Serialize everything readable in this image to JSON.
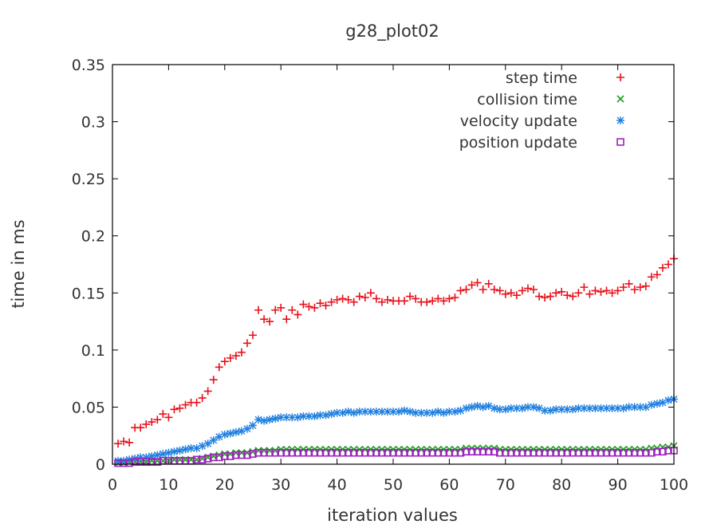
{
  "chart_data": {
    "type": "scatter",
    "title": "g28_plot02",
    "xlabel": "iteration values",
    "ylabel": "time in ms",
    "xlim": [
      0,
      100
    ],
    "ylim": [
      0,
      0.35
    ],
    "xticks": [
      "0",
      "10",
      "20",
      "30",
      "40",
      "50",
      "60",
      "70",
      "80",
      "90",
      "100"
    ],
    "yticks": [
      "0",
      "0.05",
      "0.1",
      "0.15",
      "0.2",
      "0.25",
      "0.3",
      "0.35"
    ],
    "grid": false,
    "legend_position": "top-right",
    "x": [
      1,
      2,
      3,
      4,
      5,
      6,
      7,
      8,
      9,
      10,
      11,
      12,
      13,
      14,
      15,
      16,
      17,
      18,
      19,
      20,
      21,
      22,
      23,
      24,
      25,
      26,
      27,
      28,
      29,
      30,
      31,
      32,
      33,
      34,
      35,
      36,
      37,
      38,
      39,
      40,
      41,
      42,
      43,
      44,
      45,
      46,
      47,
      48,
      49,
      50,
      51,
      52,
      53,
      54,
      55,
      56,
      57,
      58,
      59,
      60,
      61,
      62,
      63,
      64,
      65,
      66,
      67,
      68,
      69,
      70,
      71,
      72,
      73,
      74,
      75,
      76,
      77,
      78,
      79,
      80,
      81,
      82,
      83,
      84,
      85,
      86,
      87,
      88,
      89,
      90,
      91,
      92,
      93,
      94,
      95,
      96,
      97,
      98,
      99,
      100
    ],
    "series": [
      {
        "name": "step time",
        "color": "#e8101a",
        "marker": "plus",
        "values": [
          0.018,
          0.02,
          0.019,
          0.032,
          0.032,
          0.035,
          0.037,
          0.039,
          0.044,
          0.041,
          0.048,
          0.049,
          0.052,
          0.054,
          0.054,
          0.058,
          0.064,
          0.074,
          0.085,
          0.09,
          0.093,
          0.095,
          0.098,
          0.106,
          0.113,
          0.135,
          0.127,
          0.125,
          0.135,
          0.137,
          0.127,
          0.135,
          0.131,
          0.14,
          0.138,
          0.137,
          0.141,
          0.139,
          0.142,
          0.144,
          0.145,
          0.144,
          0.142,
          0.147,
          0.146,
          0.15,
          0.145,
          0.142,
          0.144,
          0.143,
          0.143,
          0.143,
          0.147,
          0.145,
          0.142,
          0.142,
          0.143,
          0.145,
          0.143,
          0.145,
          0.146,
          0.152,
          0.153,
          0.157,
          0.159,
          0.153,
          0.158,
          0.153,
          0.152,
          0.149,
          0.15,
          0.148,
          0.152,
          0.154,
          0.153,
          0.147,
          0.146,
          0.147,
          0.15,
          0.151,
          0.148,
          0.147,
          0.15,
          0.155,
          0.149,
          0.152,
          0.151,
          0.152,
          0.15,
          0.152,
          0.155,
          0.158,
          0.153,
          0.155,
          0.156,
          0.164,
          0.166,
          0.172,
          0.175,
          0.18
        ]
      },
      {
        "name": "collision time",
        "color": "#1aa01a",
        "marker": "cross",
        "values": [
          0.001,
          0.001,
          0.002,
          0.002,
          0.002,
          0.002,
          0.003,
          0.003,
          0.003,
          0.003,
          0.004,
          0.004,
          0.004,
          0.004,
          0.004,
          0.005,
          0.006,
          0.007,
          0.008,
          0.009,
          0.009,
          0.01,
          0.01,
          0.01,
          0.011,
          0.012,
          0.012,
          0.012,
          0.012,
          0.013,
          0.013,
          0.013,
          0.013,
          0.013,
          0.013,
          0.013,
          0.013,
          0.013,
          0.013,
          0.013,
          0.013,
          0.013,
          0.013,
          0.013,
          0.013,
          0.013,
          0.013,
          0.013,
          0.013,
          0.013,
          0.013,
          0.013,
          0.013,
          0.013,
          0.013,
          0.013,
          0.013,
          0.013,
          0.013,
          0.013,
          0.013,
          0.013,
          0.014,
          0.014,
          0.014,
          0.014,
          0.014,
          0.014,
          0.013,
          0.013,
          0.013,
          0.013,
          0.013,
          0.013,
          0.013,
          0.013,
          0.013,
          0.013,
          0.013,
          0.013,
          0.013,
          0.013,
          0.013,
          0.013,
          0.013,
          0.013,
          0.013,
          0.013,
          0.013,
          0.013,
          0.013,
          0.013,
          0.013,
          0.013,
          0.013,
          0.014,
          0.014,
          0.015,
          0.015,
          0.016
        ]
      },
      {
        "name": "velocity update",
        "color": "#2080e0",
        "marker": "star",
        "values": [
          0.003,
          0.003,
          0.004,
          0.005,
          0.006,
          0.006,
          0.007,
          0.008,
          0.009,
          0.01,
          0.011,
          0.012,
          0.013,
          0.014,
          0.014,
          0.016,
          0.018,
          0.021,
          0.024,
          0.026,
          0.027,
          0.028,
          0.029,
          0.031,
          0.034,
          0.039,
          0.038,
          0.039,
          0.04,
          0.041,
          0.041,
          0.041,
          0.041,
          0.042,
          0.042,
          0.042,
          0.043,
          0.043,
          0.044,
          0.045,
          0.045,
          0.046,
          0.045,
          0.046,
          0.046,
          0.046,
          0.046,
          0.046,
          0.046,
          0.046,
          0.046,
          0.047,
          0.046,
          0.045,
          0.045,
          0.045,
          0.045,
          0.046,
          0.045,
          0.046,
          0.046,
          0.047,
          0.049,
          0.05,
          0.051,
          0.05,
          0.051,
          0.049,
          0.048,
          0.048,
          0.049,
          0.049,
          0.049,
          0.05,
          0.05,
          0.049,
          0.047,
          0.047,
          0.048,
          0.048,
          0.048,
          0.048,
          0.049,
          0.049,
          0.049,
          0.049,
          0.049,
          0.049,
          0.049,
          0.049,
          0.049,
          0.05,
          0.05,
          0.05,
          0.05,
          0.052,
          0.053,
          0.054,
          0.056,
          0.057
        ]
      },
      {
        "name": "position update",
        "color": "#a020c0",
        "marker": "square",
        "values": [
          0.001,
          0.001,
          0.001,
          0.002,
          0.002,
          0.002,
          0.002,
          0.002,
          0.003,
          0.003,
          0.003,
          0.003,
          0.003,
          0.003,
          0.004,
          0.004,
          0.005,
          0.006,
          0.006,
          0.007,
          0.007,
          0.008,
          0.008,
          0.008,
          0.009,
          0.01,
          0.01,
          0.01,
          0.01,
          0.01,
          0.01,
          0.01,
          0.01,
          0.01,
          0.01,
          0.01,
          0.01,
          0.01,
          0.01,
          0.01,
          0.01,
          0.01,
          0.01,
          0.01,
          0.01,
          0.01,
          0.01,
          0.01,
          0.01,
          0.01,
          0.01,
          0.01,
          0.01,
          0.01,
          0.01,
          0.01,
          0.01,
          0.01,
          0.01,
          0.01,
          0.01,
          0.01,
          0.011,
          0.011,
          0.011,
          0.011,
          0.011,
          0.011,
          0.01,
          0.01,
          0.01,
          0.01,
          0.01,
          0.01,
          0.01,
          0.01,
          0.01,
          0.01,
          0.01,
          0.01,
          0.01,
          0.01,
          0.01,
          0.01,
          0.01,
          0.01,
          0.01,
          0.01,
          0.01,
          0.01,
          0.01,
          0.01,
          0.01,
          0.01,
          0.01,
          0.01,
          0.011,
          0.011,
          0.012,
          0.012
        ]
      }
    ]
  }
}
